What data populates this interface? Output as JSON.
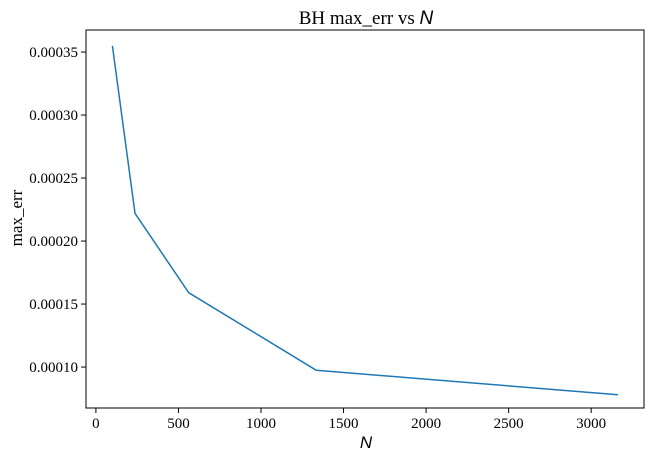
{
  "chart_data": {
    "type": "line",
    "title": "BH max_err vs ",
    "title_symbol": "N",
    "xlabel": "N",
    "ylabel": "max_err",
    "x": [
      100,
      237,
      562,
      1334,
      3162
    ],
    "series": [
      {
        "values": [
          0.000355,
          0.000222,
          0.000159,
          9.75e-05,
          7.8e-05
        ],
        "color": "#1f77b4"
      }
    ],
    "xlim": [
      -60,
      3320
    ],
    "ylim": [
      6.75e-05,
      0.0003675
    ],
    "xticks": [
      0,
      500,
      1000,
      1500,
      2000,
      2500,
      3000
    ],
    "xtick_labels": [
      "0",
      "500",
      "1000",
      "1500",
      "2000",
      "2500",
      "3000"
    ],
    "yticks": [
      0.0001,
      0.00015,
      0.0002,
      0.00025,
      0.0003,
      0.00035
    ],
    "ytick_labels": [
      "0.00010",
      "0.00015",
      "0.00020",
      "0.00025",
      "0.00030",
      "0.00035"
    ],
    "grid": false,
    "legend": false
  }
}
